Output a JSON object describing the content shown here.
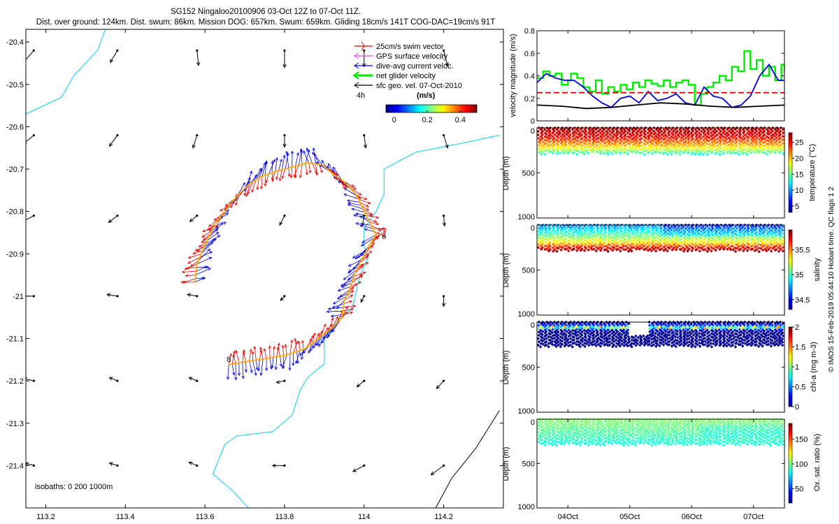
{
  "title": {
    "line1": "SG152 Ningaloo20100906 03-Oct 12Z to 07-Oct 11Z.",
    "line2": "Dist. over ground: 124km. Dist. swum: 86km. Mission DOG: 657km. Swum: 659km. Gliding 18cm/s 141T COG-DAC=19cm/s 91T"
  },
  "credit": "© IMOS 15-Feb-2019 05:44:10 Hobart time. QC flags 1  2",
  "colors": {
    "coast": "#2ad4ef",
    "swim": "#e00000",
    "gps": "#e040e0",
    "dac": "#0000dd",
    "net": "#00ee00",
    "sfc": "#000000",
    "isobath": "#000000",
    "ref_line": "#e00000"
  },
  "chart_data": [
    {
      "id": "map",
      "type": "scatter",
      "xlabel": "",
      "ylabel": "",
      "xlim": [
        113.15,
        114.35
      ],
      "ylim": [
        -21.5,
        -20.37
      ],
      "xticks": [
        "113.2",
        "113.4",
        "113.6",
        "113.8",
        "114",
        "114.2"
      ],
      "xtick_values": [
        113.2,
        113.4,
        113.6,
        113.8,
        114.0,
        114.2
      ],
      "yticks": [
        "-20.4",
        "-20.5",
        "-20.6",
        "-20.7",
        "-20.8",
        "-20.9",
        "-21",
        "-21.1",
        "-21.2",
        "-21.3",
        "-21.4"
      ],
      "ytick_values": [
        -20.4,
        -20.5,
        -20.6,
        -20.7,
        -20.8,
        -20.9,
        -21.0,
        -21.1,
        -21.2,
        -21.3,
        -21.4
      ],
      "legend": {
        "placement": "top-right",
        "entries": [
          "25cm/s swim vector",
          "GPS surface velocity",
          "dive-avg current veloc.",
          "net glider velocity",
          "sfc geo. vel. 07-Oct-2010"
        ],
        "interval_label": "4h",
        "units_label": "(m/s)",
        "colorbar_ticks": [
          "0",
          "0.2",
          "0.4"
        ],
        "colorbar_range": [
          -0.05,
          0.5
        ]
      },
      "isobaths_label": "isobaths: 0   200   1000m",
      "annotations": [
        {
          "text": "6",
          "lon": 114.05,
          "lat": -20.865
        },
        {
          "text": "8",
          "lon": 113.66,
          "lat": -21.155
        }
      ],
      "sfc_grid_lons": [
        113.17,
        113.38,
        113.58,
        113.8,
        114.0,
        114.2
      ],
      "sfc_grid_lats": [
        -20.42,
        -20.62,
        -20.81,
        -21.0,
        -21.2,
        -21.4
      ],
      "sfc_vectors": [
        [
          [
            -0.028,
            -0.03
          ],
          [
            -0.018,
            -0.028
          ],
          [
            0.004,
            -0.035
          ],
          [
            0.0,
            -0.04
          ],
          [
            0.0,
            -0.038
          ],
          [
            0.01,
            -0.036
          ]
        ],
        [
          [
            -0.026,
            -0.02
          ],
          [
            -0.02,
            -0.026
          ],
          [
            -0.01,
            -0.03
          ],
          [
            0.0,
            -0.028
          ],
          [
            0.004,
            -0.03
          ],
          [
            0.01,
            -0.03
          ]
        ],
        [
          [
            -0.028,
            -0.014
          ],
          [
            -0.022,
            -0.016
          ],
          [
            -0.018,
            -0.014
          ],
          [
            -0.012,
            -0.022
          ],
          [
            -0.004,
            -0.024
          ],
          [
            0.002,
            -0.024
          ]
        ],
        [
          [
            -0.03,
            0.0
          ],
          [
            -0.026,
            0.004
          ],
          [
            -0.024,
            0.004
          ],
          [
            -0.01,
            -0.01
          ],
          [
            -0.008,
            -0.014
          ],
          [
            0.0,
            -0.024
          ]
        ],
        [
          [
            -0.026,
            0.006
          ],
          [
            -0.02,
            0.008
          ],
          [
            -0.02,
            0.008
          ],
          [
            -0.02,
            -0.004
          ],
          [
            -0.018,
            -0.014
          ],
          [
            -0.018,
            -0.018
          ]
        ],
        [
          [
            -0.022,
            0.006
          ],
          [
            -0.02,
            0.006
          ],
          [
            -0.02,
            0.008
          ],
          [
            -0.03,
            0.0
          ],
          [
            -0.028,
            -0.014
          ],
          [
            -0.032,
            -0.022
          ]
        ]
      ],
      "coastline": [
        [
          113.15,
          -20.57
        ],
        [
          113.24,
          -20.53
        ],
        [
          113.27,
          -20.48
        ],
        [
          113.33,
          -20.42
        ],
        [
          113.35,
          -20.37
        ],
        null,
        [
          114.34,
          -20.62
        ],
        [
          114.24,
          -20.64
        ],
        [
          114.13,
          -20.66
        ],
        [
          114.05,
          -20.7
        ],
        [
          114.05,
          -20.76
        ],
        [
          114.03,
          -20.8
        ],
        [
          114.0,
          -20.84
        ],
        [
          114.0,
          -20.88
        ],
        [
          114.01,
          -20.91
        ],
        [
          113.99,
          -20.95
        ],
        [
          113.98,
          -20.99
        ],
        [
          113.97,
          -21.03
        ],
        [
          113.94,
          -21.05
        ],
        [
          113.9,
          -21.1
        ],
        [
          113.9,
          -21.16
        ],
        [
          113.86,
          -21.19
        ],
        [
          113.84,
          -21.22
        ],
        [
          113.82,
          -21.28
        ],
        [
          113.77,
          -21.32
        ],
        [
          113.68,
          -21.33
        ],
        [
          113.65,
          -21.35
        ],
        [
          113.62,
          -21.42
        ],
        [
          113.67,
          -21.46
        ],
        [
          113.71,
          -21.5
        ]
      ],
      "isobath_1000": [
        [
          114.34,
          -21.27
        ],
        [
          114.28,
          -21.36
        ],
        [
          114.22,
          -21.43
        ],
        [
          114.18,
          -21.5
        ]
      ],
      "track": [
        [
          113.575,
          -20.967
        ],
        [
          113.58,
          -20.925
        ],
        [
          113.6,
          -20.88
        ],
        [
          113.625,
          -20.83
        ],
        [
          113.65,
          -20.8
        ],
        [
          113.675,
          -20.77
        ],
        [
          113.705,
          -20.74
        ],
        [
          113.74,
          -20.718
        ],
        [
          113.78,
          -20.705
        ],
        [
          113.82,
          -20.695
        ],
        [
          113.86,
          -20.685
        ],
        [
          113.895,
          -20.69
        ],
        [
          113.92,
          -20.71
        ],
        [
          113.95,
          -20.73
        ],
        [
          113.98,
          -20.76
        ],
        [
          113.995,
          -20.79
        ],
        [
          114.01,
          -20.82
        ],
        [
          114.03,
          -20.855
        ],
        [
          114.01,
          -20.885
        ],
        [
          113.99,
          -20.92
        ],
        [
          113.975,
          -20.95
        ],
        [
          113.965,
          -20.98
        ],
        [
          113.95,
          -21.01
        ],
        [
          113.945,
          -21.05
        ],
        [
          113.92,
          -21.075
        ],
        [
          113.885,
          -21.1
        ],
        [
          113.85,
          -21.125
        ],
        [
          113.8,
          -21.14
        ],
        [
          113.75,
          -21.148
        ],
        [
          113.7,
          -21.155
        ],
        [
          113.66,
          -21.162
        ]
      ]
    },
    {
      "id": "velocity",
      "type": "line",
      "title": "",
      "xlabel": "",
      "ylabel": "velocity magnitude (m/s)",
      "xlim": [
        0,
        4
      ],
      "ylim": [
        0,
        0.8
      ],
      "yticks": [
        "0",
        "0.2",
        "0.4",
        "0.6",
        "0.8"
      ],
      "ytick_values": [
        0,
        0.2,
        0.4,
        0.6,
        0.8
      ],
      "series": [
        {
          "name": "net glider velocity",
          "color": "#00ee00",
          "style": "step",
          "x": [
            0.0,
            0.1,
            0.2,
            0.3,
            0.4,
            0.5,
            0.55,
            0.65,
            0.75,
            0.85,
            0.95,
            1.05,
            1.15,
            1.25,
            1.35,
            1.45,
            1.55,
            1.65,
            1.75,
            1.85,
            1.95,
            2.05,
            2.15,
            2.25,
            2.35,
            2.45,
            2.55,
            2.65,
            2.75,
            2.85,
            2.95,
            3.05,
            3.15,
            3.25,
            3.35,
            3.45,
            3.55,
            3.65,
            3.75,
            3.85,
            3.95,
            4.0
          ],
          "values": [
            0.38,
            0.44,
            0.4,
            0.42,
            0.32,
            0.36,
            0.42,
            0.38,
            0.3,
            0.26,
            0.36,
            0.24,
            0.3,
            0.26,
            0.32,
            0.28,
            0.34,
            0.3,
            0.36,
            0.33,
            0.31,
            0.36,
            0.3,
            0.34,
            0.36,
            0.32,
            0.14,
            0.24,
            0.3,
            0.34,
            0.4,
            0.36,
            0.48,
            0.44,
            0.62,
            0.46,
            0.54,
            0.4,
            0.48,
            0.36,
            0.5,
            0.44
          ]
        },
        {
          "name": "dive-avg current veloc.",
          "color": "#0000dd",
          "style": "line",
          "x": [
            0.0,
            0.15,
            0.3,
            0.45,
            0.6,
            0.75,
            0.9,
            1.05,
            1.2,
            1.35,
            1.5,
            1.65,
            1.8,
            1.95,
            2.1,
            2.25,
            2.4,
            2.55,
            2.7,
            2.85,
            3.0,
            3.15,
            3.3,
            3.45,
            3.6,
            3.75,
            3.9,
            4.0
          ],
          "values": [
            0.34,
            0.42,
            0.38,
            0.36,
            0.36,
            0.3,
            0.22,
            0.16,
            0.12,
            0.2,
            0.22,
            0.16,
            0.26,
            0.18,
            0.2,
            0.24,
            0.16,
            0.14,
            0.3,
            0.22,
            0.2,
            0.12,
            0.14,
            0.22,
            0.4,
            0.5,
            0.36,
            0.36
          ]
        },
        {
          "name": "sfc geo. vel.",
          "color": "#000000",
          "style": "line",
          "x": [
            0.0,
            0.4,
            0.8,
            1.2,
            1.6,
            2.0,
            2.4,
            2.8,
            3.2,
            3.6,
            4.0
          ],
          "values": [
            0.14,
            0.13,
            0.11,
            0.12,
            0.14,
            0.16,
            0.15,
            0.13,
            0.12,
            0.13,
            0.14
          ]
        },
        {
          "name": "25cm/s reference",
          "color": "#e00000",
          "style": "dashed",
          "x": [
            0,
            4
          ],
          "values": [
            0.25,
            0.25
          ]
        }
      ]
    },
    {
      "id": "temperature",
      "type": "heatmap",
      "ylabel": "Depth (m)",
      "colorbar_label": "temperature (°C)",
      "ylim": [
        1000,
        0
      ],
      "yticks": [
        "0",
        "500",
        "1000"
      ],
      "ytick_values": [
        0,
        500,
        1000
      ],
      "colorbar_ticks": [
        "5",
        "10",
        "15",
        "20",
        "25"
      ],
      "colorbar_values": [
        5,
        10,
        15,
        20,
        25
      ],
      "colorbar_range": [
        3,
        28
      ],
      "max_depth": 290,
      "profile": [
        [
          0,
          27
        ],
        [
          60,
          26
        ],
        [
          120,
          24
        ],
        [
          180,
          21
        ],
        [
          230,
          18
        ],
        [
          270,
          15
        ],
        [
          300,
          12
        ]
      ]
    },
    {
      "id": "salinity",
      "type": "heatmap",
      "ylabel": "Depth (m)",
      "colorbar_label": "salinity",
      "ylim": [
        1000,
        0
      ],
      "yticks": [
        "0",
        "500",
        "1000"
      ],
      "ytick_values": [
        0,
        500,
        1000
      ],
      "colorbar_ticks": [
        "34.5",
        "35",
        "35.5"
      ],
      "colorbar_values": [
        34.5,
        35,
        35.5
      ],
      "colorbar_range": [
        34.3,
        35.9
      ],
      "max_depth": 290,
      "profile": [
        [
          0,
          34.7
        ],
        [
          60,
          34.9
        ],
        [
          130,
          35.1
        ],
        [
          190,
          35.3
        ],
        [
          230,
          35.55
        ],
        [
          260,
          35.75
        ],
        [
          300,
          35.85
        ]
      ]
    },
    {
      "id": "chla",
      "type": "heatmap",
      "ylabel": "Depth (m)",
      "colorbar_label": "chl-a (mg m-3)",
      "ylim": [
        1000,
        0
      ],
      "yticks": [
        "0",
        "500",
        "1000"
      ],
      "ytick_values": [
        0,
        500,
        1000
      ],
      "colorbar_ticks": [
        "0",
        "0.5",
        "1",
        "1.5",
        "2"
      ],
      "colorbar_values": [
        0,
        0.5,
        1,
        1.5,
        2
      ],
      "colorbar_range": [
        0,
        2
      ],
      "max_depth": 270,
      "profile": [
        [
          0,
          0.05
        ],
        [
          30,
          0.25
        ],
        [
          60,
          0.9
        ],
        [
          90,
          0.2
        ],
        [
          130,
          0.05
        ],
        [
          270,
          0.02
        ]
      ]
    },
    {
      "id": "oxygen",
      "type": "heatmap",
      "ylabel": "Depth (m)",
      "colorbar_label": "Ox. sat. ratio (%)",
      "xlabel": "",
      "ylim": [
        1000,
        0
      ],
      "yticks": [
        "0",
        "500",
        "1000"
      ],
      "ytick_values": [
        0,
        500,
        1000
      ],
      "xticks": [
        "04Oct",
        "05Oct",
        "06Oct",
        "07Oct"
      ],
      "xtick_values": [
        0.5,
        1.5,
        2.5,
        3.5
      ],
      "colorbar_ticks": [
        "50",
        "100",
        "150"
      ],
      "colorbar_values": [
        50,
        100,
        150
      ],
      "colorbar_range": [
        20,
        180
      ],
      "max_depth": 290,
      "profile": [
        [
          0,
          102
        ],
        [
          80,
          98
        ],
        [
          180,
          92
        ],
        [
          260,
          86
        ],
        [
          300,
          84
        ]
      ]
    }
  ]
}
